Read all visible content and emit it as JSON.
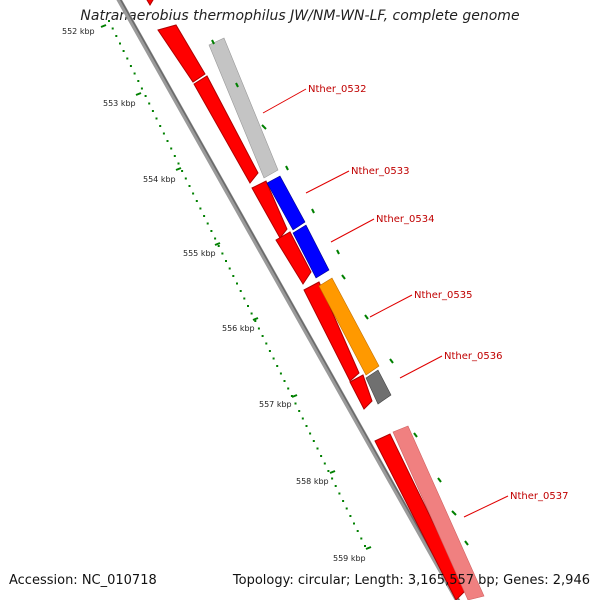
{
  "title": "Natranaerobius thermophilus JW/NM-WN-LF, complete genome",
  "accession": "Accession: NC_010718",
  "summary": "Topology: circular; Length: 3,165,557 bp; Genes: 2,946",
  "ruler_labels": [
    "552 kbp",
    "553 kbp",
    "554 kbp",
    "555 kbp",
    "556 kbp",
    "557 kbp",
    "558 kbp",
    "559 kbp"
  ],
  "gene_labels": [
    "Nther_0532",
    "Nther_0533",
    "Nther_0534",
    "Nther_0535",
    "Nther_0536",
    "Nther_0537"
  ],
  "colors": {
    "cds": "#ff0000",
    "gene_grey": "#c0c0c0",
    "gene_blue": "#0000ff",
    "gene_orange": "#ff9900",
    "gene_dark": "#707070",
    "gene_pink": "#f08080",
    "backbone": "#808080",
    "tick": "#008000",
    "label": "#c00000"
  }
}
